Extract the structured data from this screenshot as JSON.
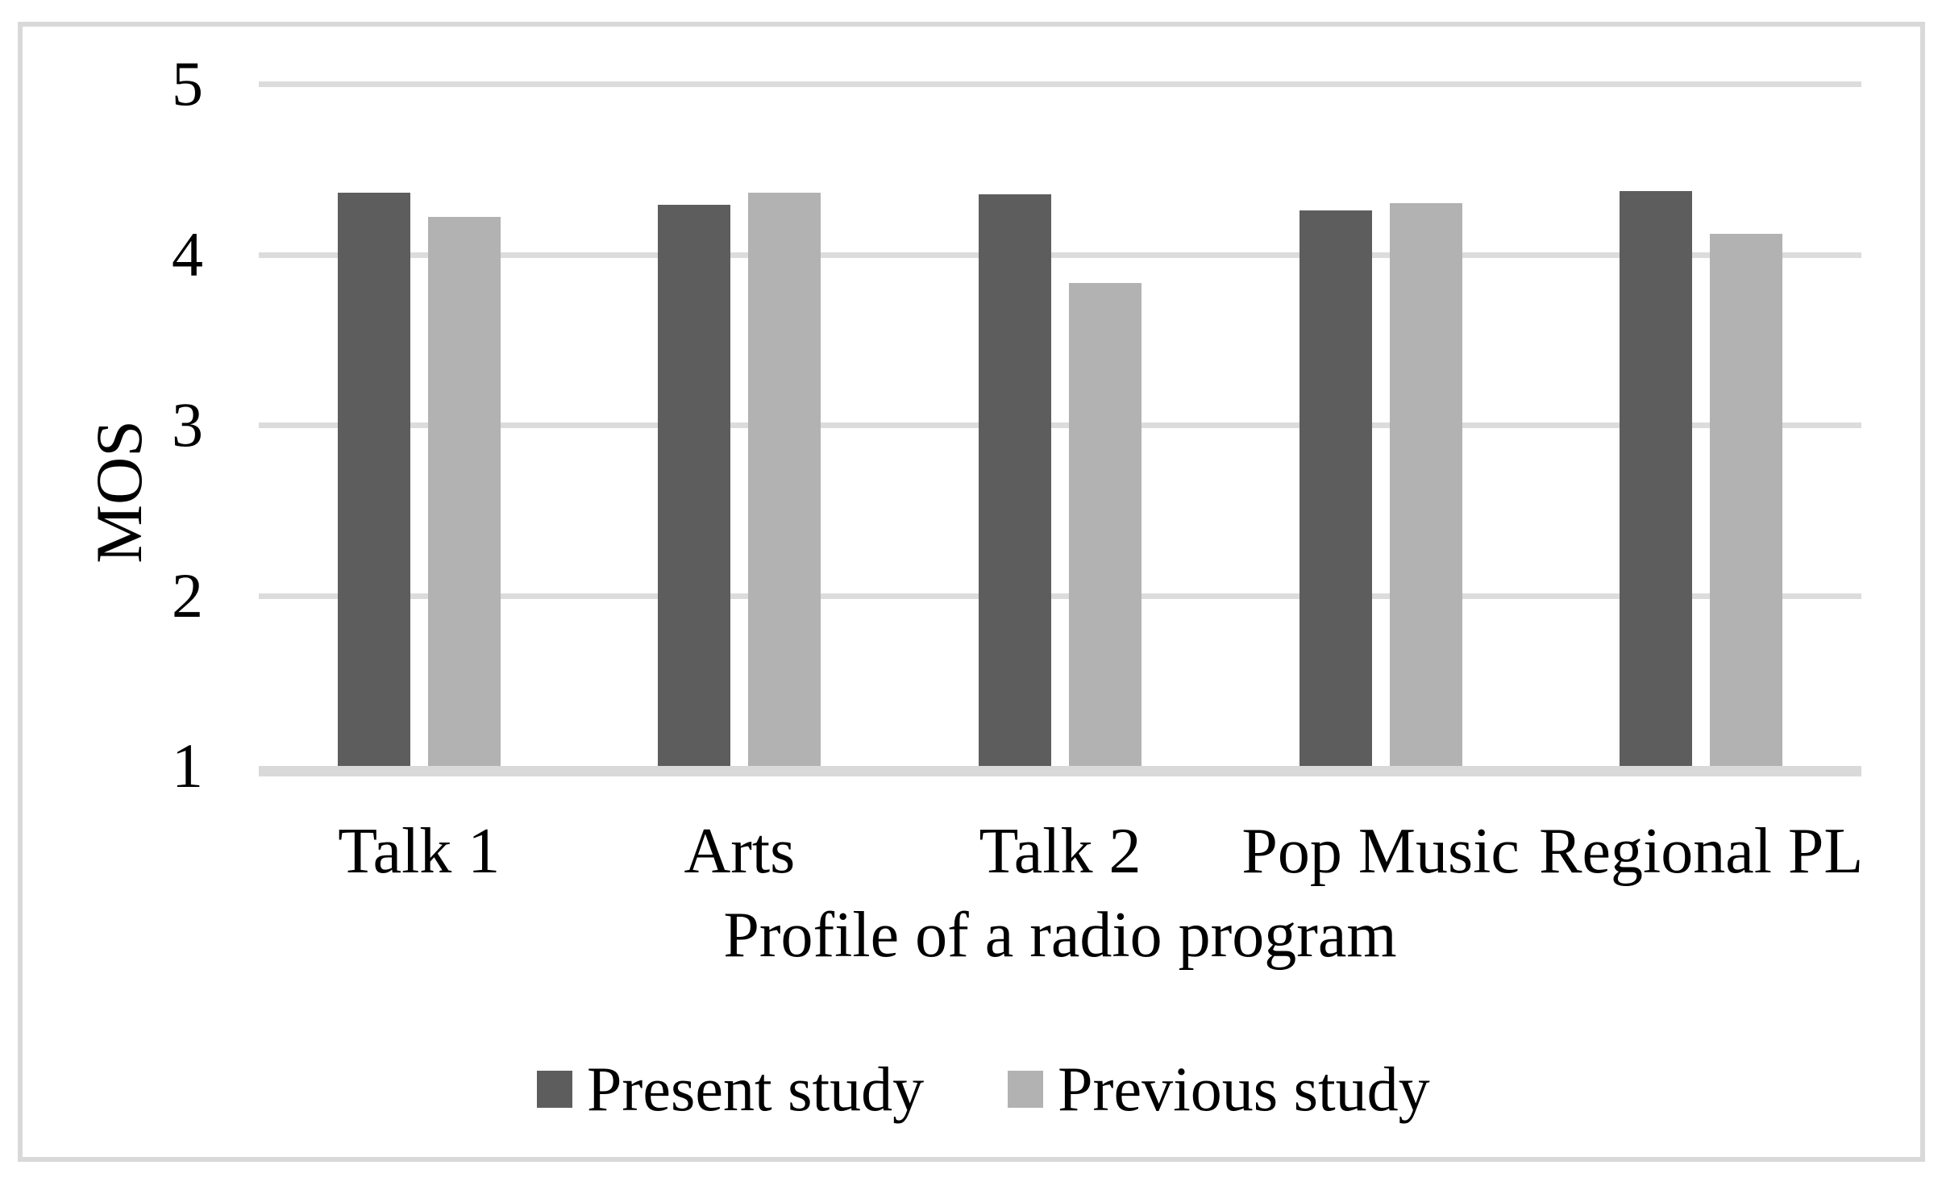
{
  "figure": {
    "kind": "grouped-bar-chart-figure",
    "background": "#ffffff",
    "border_color": "#d9d9d9"
  },
  "chart_data": {
    "type": "bar",
    "title": "",
    "categories": [
      "Talk 1",
      "Arts",
      "Talk 2",
      "Pop Music",
      "Regional PL"
    ],
    "series": [
      {
        "name": "Present study",
        "color": "#5d5d5d",
        "values": [
          4.36,
          4.29,
          4.35,
          4.26,
          4.37
        ]
      },
      {
        "name": "Previous study",
        "color": "#b2b2b2",
        "values": [
          4.22,
          4.36,
          3.83,
          4.3,
          4.12
        ]
      }
    ],
    "xlabel": "Profile of a radio program",
    "ylabel": "MOS",
    "ylim": [
      1,
      5
    ],
    "yticks": [
      "5",
      "4",
      "3",
      "2",
      "1"
    ],
    "ytick_values": [
      5,
      4,
      3,
      2,
      1
    ],
    "grid": "horizontal",
    "gridline_color": "#dcdcdc",
    "axis_line_color": "#d9d9d9",
    "legend_position": "bottom"
  }
}
